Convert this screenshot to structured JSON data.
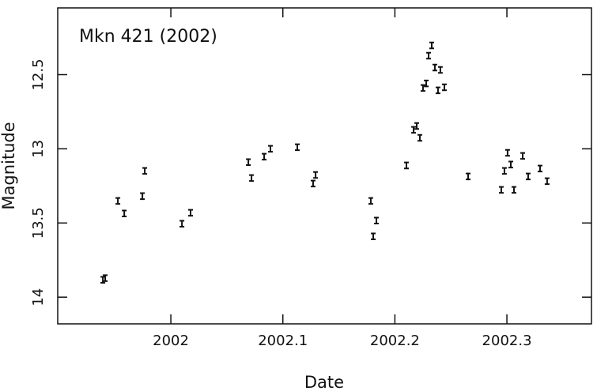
{
  "chart_data": {
    "type": "scatter",
    "title": "Mkn 421 (2002)",
    "x_label": "Date",
    "y_label": "Magnitude",
    "x": [
      2001.9393,
      2001.9414,
      2001.9527,
      2001.9584,
      2001.9746,
      2001.9767,
      2002.0099,
      2002.0176,
      2002.0692,
      2002.072,
      2002.0833,
      2002.0889,
      2002.1129,
      2002.127,
      2002.1292,
      2002.1785,
      2002.1807,
      2002.1835,
      2002.2103,
      2002.2167,
      2002.2195,
      2002.2223,
      2002.2251,
      2002.228,
      2002.2301,
      2002.2329,
      2002.2357,
      2002.2385,
      2002.2406,
      2002.2442,
      2002.2654,
      2002.295,
      2002.2978,
      2002.3006,
      2002.3035,
      2002.3063,
      2002.3141,
      2002.319,
      2002.3296,
      2002.3359
    ],
    "values": [
      13.883,
      13.872,
      13.351,
      13.436,
      13.319,
      13.149,
      13.505,
      13.431,
      13.09,
      13.197,
      13.053,
      13.0,
      12.989,
      13.234,
      13.176,
      13.351,
      13.59,
      13.484,
      13.112,
      12.872,
      12.846,
      12.926,
      12.59,
      12.559,
      12.372,
      12.303,
      12.452,
      12.606,
      12.468,
      12.585,
      13.186,
      13.277,
      13.149,
      13.027,
      13.106,
      13.277,
      13.048,
      13.186,
      13.133,
      13.218
    ],
    "errors": [
      0.02,
      0.02,
      0.02,
      0.02,
      0.02,
      0.02,
      0.02,
      0.02,
      0.02,
      0.02,
      0.02,
      0.02,
      0.02,
      0.02,
      0.02,
      0.02,
      0.02,
      0.02,
      0.02,
      0.02,
      0.02,
      0.02,
      0.02,
      0.02,
      0.02,
      0.02,
      0.02,
      0.02,
      0.02,
      0.02,
      0.02,
      0.02,
      0.02,
      0.02,
      0.02,
      0.02,
      0.02,
      0.02,
      0.02,
      0.02
    ],
    "color": "#111111",
    "xlim": [
      2001.899,
      2002.3755
    ],
    "xticks": [
      2002,
      2002.1,
      2002.2,
      2002.3
    ],
    "ylim": [
      14.18,
      12.05
    ],
    "yticks": [
      12.5,
      13,
      13.5,
      14
    ]
  }
}
